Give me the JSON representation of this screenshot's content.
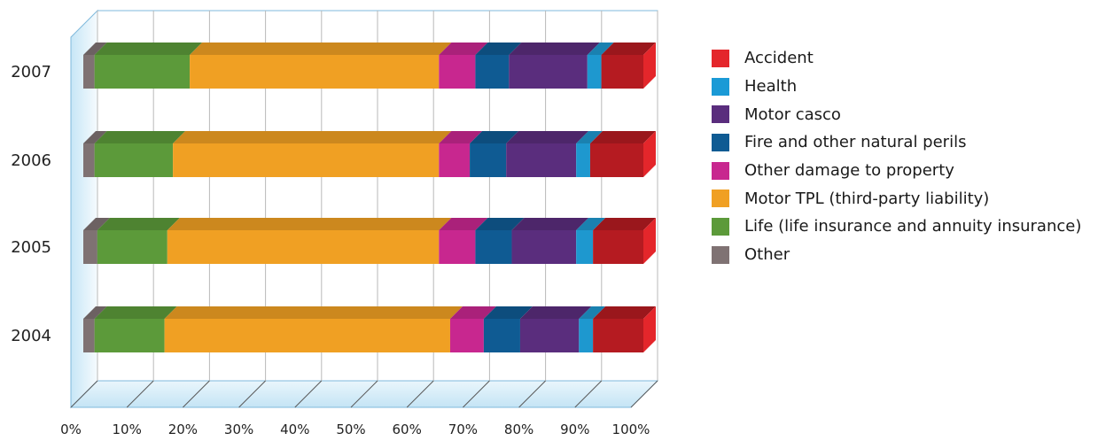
{
  "chart_data": {
    "type": "bar",
    "orientation": "horizontal",
    "stacked": true,
    "percent": true,
    "categories": [
      "2007",
      "2006",
      "2005",
      "2004"
    ],
    "x_ticks": [
      "0%",
      "10%",
      "20%",
      "30%",
      "40%",
      "50%",
      "60%",
      "70%",
      "80%",
      "90%",
      "100%"
    ],
    "xlim": [
      0,
      100
    ],
    "grid": true,
    "legend_position": "right",
    "series": [
      {
        "name": "Other",
        "color": "#7f7273",
        "values": [
          2,
          2,
          2.5,
          2
        ]
      },
      {
        "name": "Life (life insurance and annuity insurance)",
        "color": "#5c9a3a",
        "values": [
          17,
          14,
          12.5,
          12.5
        ]
      },
      {
        "name": "Motor TPL (third-party liability)",
        "color": "#f0a023",
        "values": [
          44.5,
          47.5,
          48.5,
          51
        ]
      },
      {
        "name": "Other damage to property",
        "color": "#c8278f",
        "values": [
          6.5,
          5.5,
          6.5,
          6
        ]
      },
      {
        "name": "Fire and other natural perils",
        "color": "#0f5b93",
        "values": [
          6,
          6.5,
          6.5,
          6.5
        ]
      },
      {
        "name": "Motor casco",
        "color": "#5a2d7d",
        "values": [
          14,
          12.5,
          11.5,
          10.5
        ]
      },
      {
        "name": "Health",
        "color": "#1e98cf",
        "values": [
          2.5,
          2.5,
          3,
          2.5
        ]
      },
      {
        "name": "Accident",
        "color": "#b51b21",
        "values": [
          7.5,
          9.5,
          9,
          9
        ]
      }
    ]
  },
  "legend": [
    {
      "label": "Accident",
      "color": "#e4262b"
    },
    {
      "label": "Health",
      "color": "#1a9ad6"
    },
    {
      "label": "Motor casco",
      "color": "#5a2d7d"
    },
    {
      "label": "Fire and other natural perils",
      "color": "#0f5b93"
    },
    {
      "label": "Other damage to property",
      "color": "#c8278f"
    },
    {
      "label": "Motor TPL (third-party liability)",
      "color": "#f0a023"
    },
    {
      "label": "Life (life insurance and annuity insurance)",
      "color": "#5c9a3a"
    },
    {
      "label": "Other",
      "color": "#7f7273"
    }
  ]
}
